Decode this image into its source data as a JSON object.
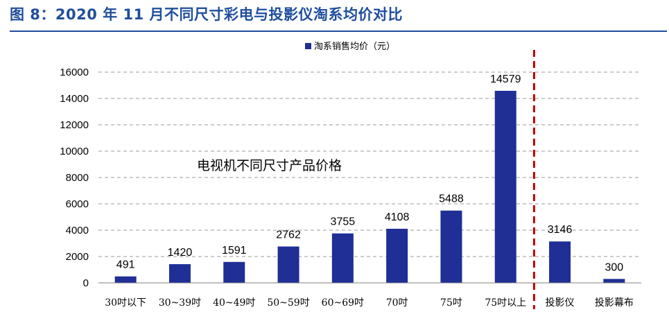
{
  "figure": {
    "title": "图 8：2020 年 11 月不同尺寸彩电与投影仪淘系均价对比",
    "colors": {
      "title": "#1f4e9c",
      "bar": "#1f2f96",
      "divider": "#c00000"
    }
  },
  "chart_data": {
    "type": "bar",
    "title": "",
    "xlabel": "",
    "ylabel": "",
    "categories": [
      "30吋以下",
      "30~39吋",
      "40~49吋",
      "50~59吋",
      "60~69吋",
      "70吋",
      "75吋",
      "75吋以上",
      "投影仪",
      "投影幕布"
    ],
    "series": [
      {
        "name": "淘系销售均价（元）",
        "values": [
          491,
          1420,
          1591,
          2762,
          3755,
          4108,
          5488,
          14579,
          3146,
          300
        ]
      }
    ],
    "ylim": [
      0,
      16000
    ],
    "yticks": [
      0,
      2000,
      4000,
      6000,
      8000,
      10000,
      12000,
      14000,
      16000
    ],
    "grid": true,
    "legend_position": "top-center",
    "data_labels": true,
    "annotations": [
      {
        "text": "电视机不同尺寸产品价格"
      }
    ],
    "divider_after_category": "75吋以上"
  }
}
